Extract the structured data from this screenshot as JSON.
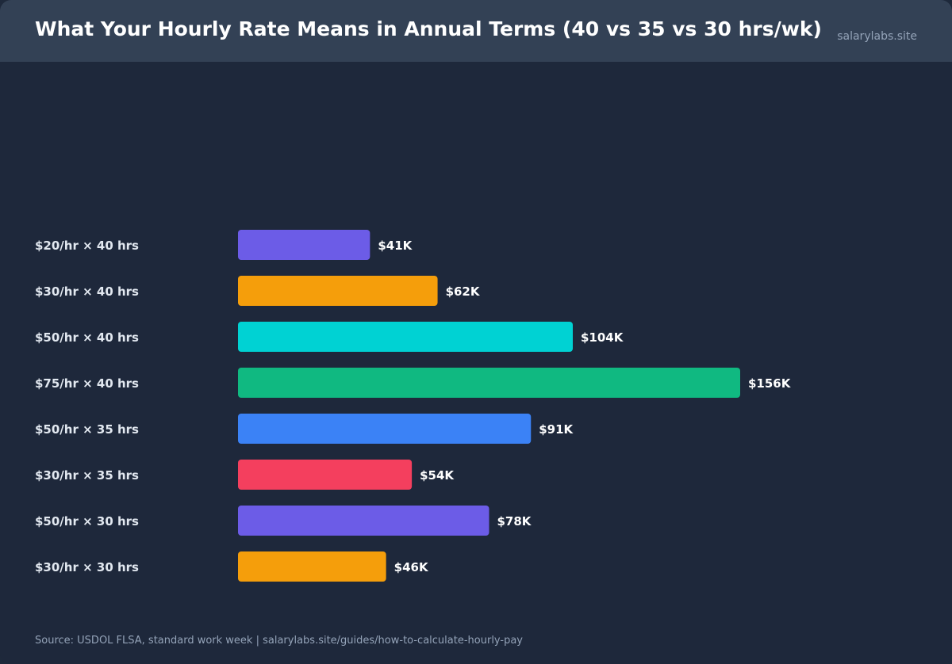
{
  "header": {
    "title": "What Your Hourly Rate Means in Annual Terms (40 vs 35 vs 30 hrs/wk)",
    "site": "salarylabs.site"
  },
  "footer": {
    "source": "Source: USDOL FLSA, standard work week | salarylabs.site/guides/how-to-calculate-hourly-pay"
  },
  "chart_data": {
    "type": "bar",
    "orientation": "horizontal",
    "categories": [
      "$20/hr × 40 hrs",
      "$30/hr × 40 hrs",
      "$50/hr × 40 hrs",
      "$75/hr × 40 hrs",
      "$50/hr × 35 hrs",
      "$30/hr × 35 hrs",
      "$50/hr × 30 hrs",
      "$30/hr × 30 hrs"
    ],
    "values": [
      41,
      62,
      104,
      156,
      91,
      54,
      78,
      46
    ],
    "value_labels": [
      "$41K",
      "$62K",
      "$104K",
      "$156K",
      "$91K",
      "$54K",
      "$78K",
      "$46K"
    ],
    "colors": [
      "#6c5ce7",
      "#f59e0b",
      "#00d2d3",
      "#10b981",
      "#3b82f6",
      "#f43f5e",
      "#6c5ce7",
      "#f59e0b"
    ],
    "xlim": [
      0,
      156
    ],
    "grid": false,
    "legend": "none"
  }
}
